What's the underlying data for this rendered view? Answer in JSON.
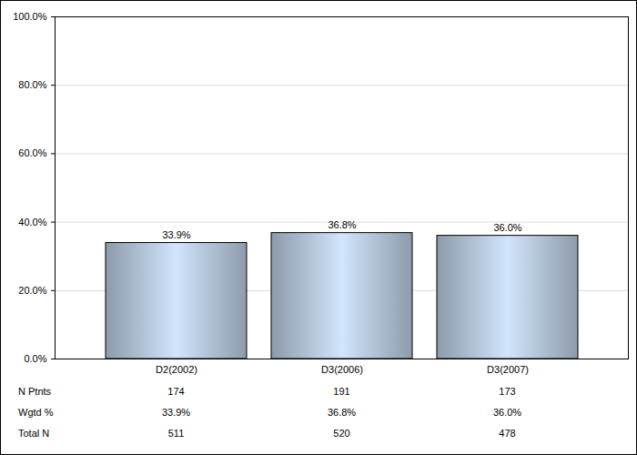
{
  "chart_data": {
    "type": "bar",
    "categories": [
      "D2(2002)",
      "D3(2006)",
      "D3(2007)"
    ],
    "values": [
      33.9,
      36.8,
      36.0
    ],
    "value_labels": [
      "33.9%",
      "36.8%",
      "36.0%"
    ],
    "data_labels": true,
    "color": "#a9b9cc",
    "ylim": [
      0,
      100
    ],
    "yticks": [
      {
        "value": 0,
        "label": "0.0%"
      },
      {
        "value": 20,
        "label": "20.0%"
      },
      {
        "value": 40,
        "label": "40.0%"
      },
      {
        "value": 60,
        "label": "60.0%"
      },
      {
        "value": 80,
        "label": "80.0%"
      },
      {
        "value": 100,
        "label": "100.0%"
      }
    ],
    "grid": true,
    "table": {
      "rows": [
        {
          "label": "N Ptnts",
          "values": [
            174,
            191,
            173
          ]
        },
        {
          "label": "Wgtd %",
          "values": [
            "33.9%",
            "36.8%",
            "36.0%"
          ]
        },
        {
          "label": "Total N",
          "values": [
            511,
            520,
            478
          ]
        }
      ]
    }
  }
}
